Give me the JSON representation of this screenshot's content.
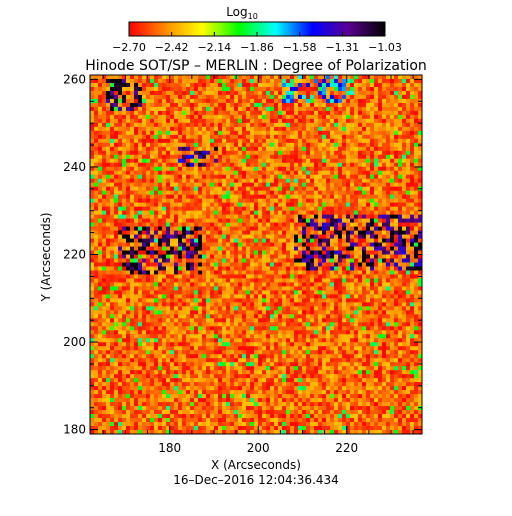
{
  "colorbar": {
    "label_base": "Log",
    "label_sub": "10",
    "ticks": [
      "−2.70",
      "−2.42",
      "−2.14",
      "−1.86",
      "−1.58",
      "−1.31",
      "−1.03"
    ],
    "colormap": [
      "#ff0000",
      "#ff8c00",
      "#ffff00",
      "#00ff00",
      "#00ffff",
      "#0000ff",
      "#5a0090",
      "#000000"
    ]
  },
  "title": "Hinode SOT/SP – MERLIN : Degree of Polarization",
  "timestamp": "16–Dec–2016 12:04:36.434",
  "chart_data": {
    "type": "heatmap",
    "title": "Hinode SOT/SP – MERLIN : Degree of Polarization",
    "xlabel": "X (Arcseconds)",
    "ylabel": "Y (Arcseconds)",
    "xlim": [
      162,
      237
    ],
    "ylim": [
      179,
      261
    ],
    "xticks": [
      180,
      200,
      220
    ],
    "yticks": [
      180,
      200,
      220,
      240,
      260
    ],
    "color_scale": "log10",
    "color_range": [
      -2.7,
      -1.03
    ],
    "background_level": -2.5,
    "features": [
      {
        "desc": "top-left strong patch",
        "x": [
          166,
          174
        ],
        "y": [
          253,
          260
        ],
        "value": -1.1
      },
      {
        "desc": "upper-middle streak",
        "x": [
          182,
          191
        ],
        "y": [
          240,
          245
        ],
        "value": -1.3
      },
      {
        "desc": "left plage",
        "x": [
          168,
          187
        ],
        "y": [
          215,
          226
        ],
        "value": -1.15
      },
      {
        "desc": "right plage",
        "x": [
          208,
          237
        ],
        "y": [
          216,
          229
        ],
        "value": -1.2
      },
      {
        "desc": "top-right edge",
        "x": [
          205,
          222
        ],
        "y": [
          255,
          261
        ],
        "value": -1.7
      }
    ]
  }
}
